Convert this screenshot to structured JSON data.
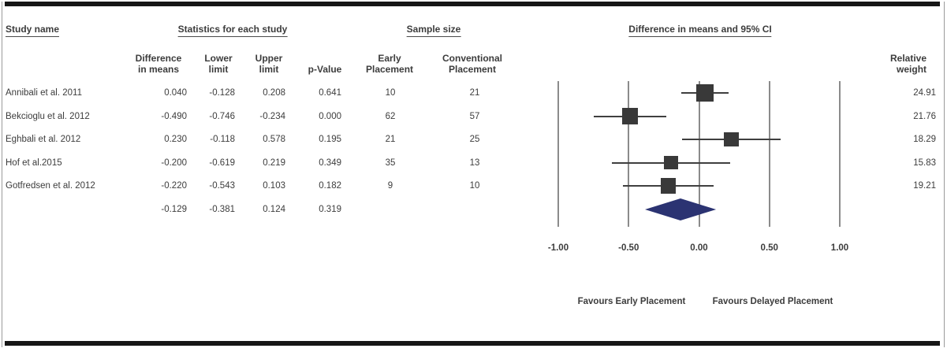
{
  "header": {
    "study_name": "Study name",
    "statistics_group": "Statistics for each study",
    "sample_size_group": "Sample size",
    "ci_group": "Difference in means and 95% CI",
    "col_diff": "Difference\nin means",
    "col_lower": "Lower\nlimit",
    "col_upper": "Upper\nlimit",
    "col_pvalue": "p-Value",
    "col_early": "Early\nPlacement",
    "col_conventional": "Conventional\nPlacement",
    "col_weight": "Relative\nweight"
  },
  "chart_data": {
    "type": "forest",
    "title": "Difference in means and 95% CI",
    "studies": [
      {
        "name": "Annibali et al. 2011",
        "diff": "0.040",
        "lower": "-0.128",
        "upper": "0.208",
        "p": "0.641",
        "early": "10",
        "conventional": "21",
        "weight": "24.91"
      },
      {
        "name": "Bekcioglu et al. 2012",
        "diff": "-0.490",
        "lower": "-0.746",
        "upper": "-0.234",
        "p": "0.000",
        "early": "62",
        "conventional": "57",
        "weight": "21.76"
      },
      {
        "name": "Eghbali et al. 2012",
        "diff": "0.230",
        "lower": "-0.118",
        "upper": "0.578",
        "p": "0.195",
        "early": "21",
        "conventional": "25",
        "weight": "18.29"
      },
      {
        "name": "Hof et al.2015",
        "diff": "-0.200",
        "lower": "-0.619",
        "upper": "0.219",
        "p": "0.349",
        "early": "35",
        "conventional": "13",
        "weight": "15.83"
      },
      {
        "name": "Gotfredsen et al. 2012",
        "diff": "-0.220",
        "lower": "-0.543",
        "upper": "0.103",
        "p": "0.182",
        "early": "9",
        "conventional": "10",
        "weight": "19.21"
      }
    ],
    "summary": {
      "diff": "-0.129",
      "lower": "-0.381",
      "upper": "0.124",
      "p": "0.319"
    },
    "x_axis": {
      "range": [
        -1.0,
        1.0
      ],
      "tick_labels": [
        "-1.00",
        "-0.50",
        "0.00",
        "0.50",
        "1.00"
      ]
    },
    "footer_left": "Favours Early Placement",
    "footer_right": "Favours Delayed Placement",
    "colors": {
      "square": "#393939",
      "ci_line": "#3f3f3f",
      "gridline": "#8b8b8b",
      "diamond": "#2b3372",
      "frame": "#161616"
    }
  }
}
